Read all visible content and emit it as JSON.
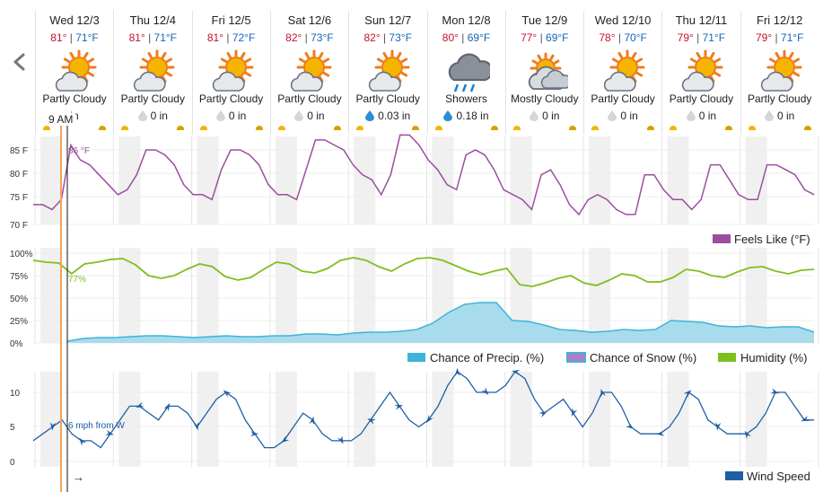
{
  "forecast_days": [
    {
      "date": "Wed 12/3",
      "hi": "81°",
      "lo": "71°F",
      "condition": "Partly Cloudy",
      "precip": "in",
      "icon": "partly-cloudy-sun-icon",
      "drop": "none"
    },
    {
      "date": "Thu 12/4",
      "hi": "81°",
      "lo": "71°F",
      "condition": "Partly Cloudy",
      "precip": "0 in",
      "icon": "partly-cloudy-sun-icon",
      "drop": "gray"
    },
    {
      "date": "Fri 12/5",
      "hi": "81°",
      "lo": "72°F",
      "condition": "Partly Cloudy",
      "precip": "0 in",
      "icon": "partly-cloudy-sun-icon",
      "drop": "gray"
    },
    {
      "date": "Sat 12/6",
      "hi": "82°",
      "lo": "73°F",
      "condition": "Partly Cloudy",
      "precip": "0 in",
      "icon": "partly-cloudy-sun-icon",
      "drop": "gray"
    },
    {
      "date": "Sun 12/7",
      "hi": "82°",
      "lo": "73°F",
      "condition": "Partly Cloudy",
      "precip": "0.03 in",
      "icon": "partly-cloudy-sun-icon",
      "drop": "blue"
    },
    {
      "date": "Mon 12/8",
      "hi": "80°",
      "lo": "69°F",
      "condition": "Showers",
      "precip": "0.18 in",
      "icon": "rain-cloud-icon",
      "drop": "blue"
    },
    {
      "date": "Tue 12/9",
      "hi": "77°",
      "lo": "69°F",
      "condition": "Mostly Cloudy",
      "precip": "0 in",
      "icon": "mostly-cloudy-icon",
      "drop": "gray"
    },
    {
      "date": "Wed 12/10",
      "hi": "78°",
      "lo": "70°F",
      "condition": "Partly Cloudy",
      "precip": "0 in",
      "icon": "partly-cloudy-sun-icon",
      "drop": "gray"
    },
    {
      "date": "Thu 12/11",
      "hi": "79°",
      "lo": "71°F",
      "condition": "Partly Cloudy",
      "precip": "0 in",
      "icon": "partly-cloudy-sun-icon",
      "drop": "gray"
    },
    {
      "date": "Fri 12/12",
      "hi": "79°",
      "lo": "71°F",
      "condition": "Partly Cloudy",
      "precip": "0 in",
      "icon": "partly-cloudy-sun-icon",
      "drop": "gray"
    }
  ],
  "now_label": "9 AM",
  "arrow_glyph": "→",
  "colors": {
    "feels_like": "#9b4ea0",
    "precip_line": "#3fb4d8",
    "precip_fill": "#a8dcec",
    "humidity": "#7fbf1c",
    "wind": "#1f5fa6",
    "now_line": "#f4a259",
    "hi": "#c8102e",
    "lo": "#1466b8"
  },
  "chart_data": [
    {
      "type": "line",
      "yticks": [
        "85 F",
        "80 F",
        "75 F",
        "70 F"
      ],
      "ylim": [
        70,
        88
      ],
      "series": [
        {
          "name": "Feels Like (°F)",
          "values": [
            74,
            74,
            73,
            75,
            86,
            83,
            82,
            80,
            78,
            76,
            77,
            80,
            85,
            85,
            84,
            82,
            78,
            76,
            76,
            75,
            81,
            85,
            85,
            84,
            82,
            78,
            76,
            76,
            75,
            81,
            87,
            87,
            86,
            85,
            82,
            80,
            79,
            76,
            80,
            88,
            88,
            86,
            83,
            81,
            78,
            77,
            84,
            85,
            84,
            81,
            77,
            76,
            75,
            73,
            80,
            81,
            78,
            74,
            72,
            75,
            76,
            75,
            73,
            72,
            72,
            80,
            80,
            77,
            75,
            75,
            73,
            75,
            82,
            82,
            79,
            76,
            75,
            75,
            82,
            82,
            81,
            80,
            77,
            76
          ]
        }
      ],
      "annotation": "86 °F",
      "legend": "Feels Like (°F)"
    },
    {
      "type": "area",
      "yticks": [
        "100%",
        "75%",
        "50%",
        "25%",
        "0%"
      ],
      "ylim": [
        0,
        100
      ],
      "series": [
        {
          "name": "Humidity (%)",
          "values": [
            92,
            90,
            89,
            77,
            88,
            90,
            93,
            94,
            87,
            75,
            72,
            75,
            82,
            88,
            85,
            74,
            70,
            73,
            82,
            90,
            88,
            80,
            78,
            83,
            92,
            95,
            92,
            85,
            80,
            88,
            94,
            95,
            92,
            86,
            80,
            76,
            80,
            83,
            65,
            63,
            67,
            72,
            75,
            67,
            64,
            70,
            77,
            75,
            68,
            68,
            73,
            82,
            80,
            75,
            73,
            79,
            84,
            85,
            80,
            77,
            81,
            82
          ]
        },
        {
          "name": "Chance of Precip. (%)",
          "values": [
            2,
            5,
            6,
            6,
            7,
            8,
            8,
            7,
            6,
            7,
            8,
            7,
            7,
            8,
            8,
            10,
            10,
            9,
            11,
            12,
            12,
            13,
            15,
            22,
            34,
            43,
            45,
            45,
            25,
            24,
            20,
            15,
            14,
            12,
            13,
            15,
            14,
            15,
            25,
            24,
            23,
            19,
            18,
            19,
            17,
            18,
            18,
            12
          ]
        },
        {
          "name": "Chance of Snow (%)",
          "values": [
            0
          ]
        }
      ],
      "annotation": "77%",
      "legend": [
        "Chance of Precip. (%)",
        "Chance of Snow (%)",
        "Humidity (%)"
      ]
    },
    {
      "type": "line",
      "yticks": [
        "10",
        "5",
        "0"
      ],
      "ylim": [
        0,
        13
      ],
      "series": [
        {
          "name": "Wind Speed",
          "values": [
            3,
            4,
            5,
            6,
            4,
            3,
            3,
            2,
            4,
            6,
            8,
            8,
            7,
            6,
            8,
            8,
            7,
            5,
            7,
            9,
            10,
            9,
            6,
            4,
            2,
            2,
            3,
            5,
            7,
            6,
            4,
            3,
            3,
            3,
            4,
            6,
            8,
            10,
            8,
            6,
            5,
            6,
            8,
            11,
            13,
            12,
            10,
            10,
            10,
            11,
            13,
            12,
            9,
            7,
            8,
            9,
            7,
            5,
            7,
            10,
            10,
            8,
            5,
            4,
            4,
            4,
            5,
            7,
            10,
            9,
            6,
            5,
            4,
            4,
            4,
            5,
            7,
            10,
            10,
            8,
            6,
            6
          ]
        }
      ],
      "annotation": "6 mph from W",
      "legend": "Wind Speed"
    }
  ]
}
